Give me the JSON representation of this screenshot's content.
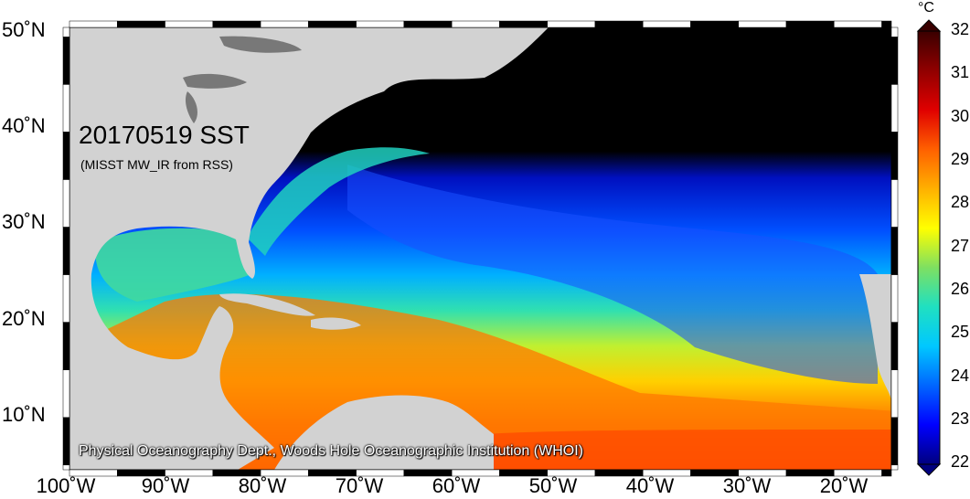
{
  "map": {
    "title": "20170519 SST",
    "subtitle": "(MISST MW_IR from RSS)",
    "credit": "Physical Oceanography Dept., Woods Hole Oceanographic Institution (WHOI)",
    "lat_labels": [
      "50˚N",
      "40˚N",
      "30˚N",
      "20˚N",
      "10˚N"
    ],
    "lon_labels": [
      "100˚W",
      "90˚W",
      "80˚W",
      "70˚W",
      "60˚W",
      "50˚W",
      "40˚W",
      "30˚W",
      "20˚W"
    ],
    "extent": {
      "lon_min": -100,
      "lon_max": -14,
      "lat_min": 4.5,
      "lat_max": 51
    }
  },
  "colorbar": {
    "unit": "°C",
    "ticks": [
      "32",
      "31",
      "30",
      "29",
      "28",
      "27",
      "26",
      "25",
      "24",
      "23",
      "22"
    ],
    "min": 22,
    "max": 32,
    "colors": [
      "#00007f",
      "#0000ff",
      "#0066ff",
      "#00c8ff",
      "#20e0c0",
      "#7fe060",
      "#ffff00",
      "#ffb000",
      "#ff6000",
      "#e00000",
      "#900000",
      "#3a0000"
    ]
  },
  "colors": {
    "land": "#d2d2d2",
    "lake": "#787878",
    "no_data": "#000000",
    "frame": "#000000"
  }
}
